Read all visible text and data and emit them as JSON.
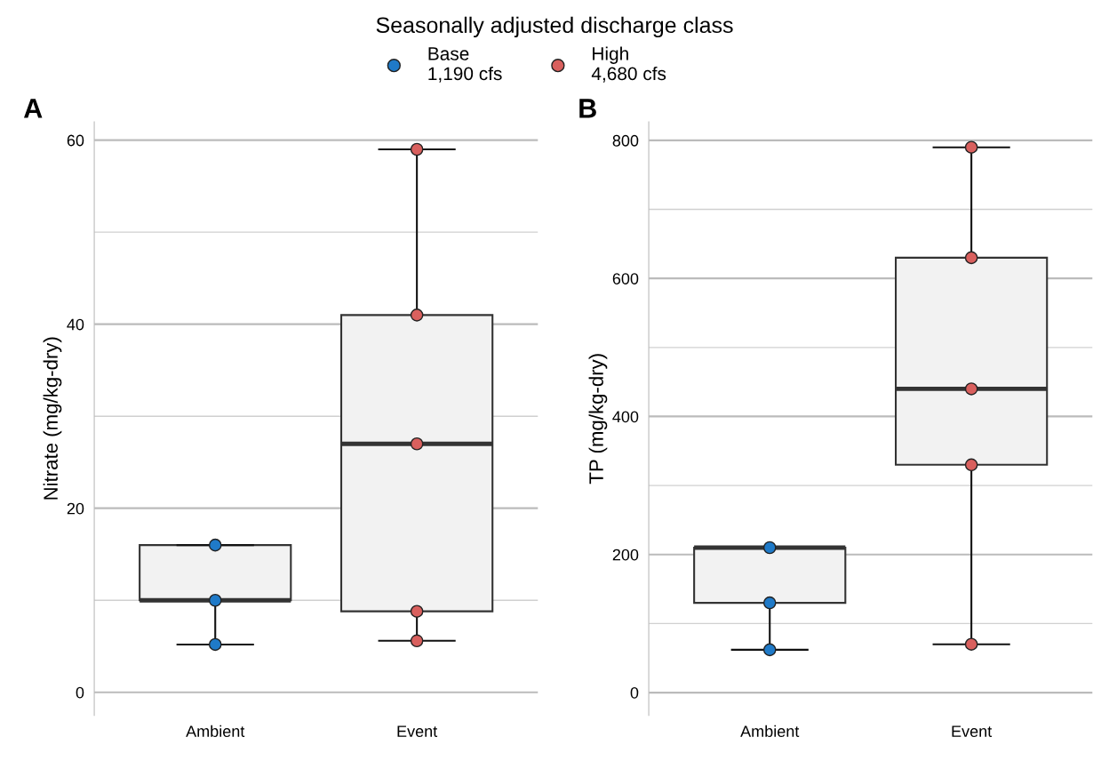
{
  "chart_data": [
    {
      "type": "box",
      "annotations": [
        "A"
      ],
      "ylabel": "Nitrate (mg/kg-dry)",
      "legend_title": "Seasonally adjusted discharge class",
      "legend": "top",
      "grid": "y",
      "marker": "circle",
      "categories": [
        "Ambient",
        "Event"
      ],
      "boxes": [
        {
          "low": 5.2,
          "q1": 10,
          "median": 10,
          "q3": 16,
          "high": 16
        },
        {
          "low": 5.6,
          "q1": 8.8,
          "median": 27,
          "q3": 41,
          "high": 59
        }
      ],
      "ylim": [
        -2.5,
        62
      ],
      "yticks": [
        0,
        {
          "value": 10,
          "label": null
        },
        20,
        {
          "value": 30,
          "label": null
        },
        40,
        {
          "value": 50,
          "label": null
        },
        60
      ],
      "series": [
        {
          "name": "Base\n1,190 cfs",
          "type": "scatter",
          "color": "#1f7ac8",
          "x": [
            "Ambient",
            "Ambient",
            "Ambient"
          ],
          "values": [
            16,
            10,
            5.2
          ]
        },
        {
          "name": "High\n4,680 cfs",
          "type": "scatter",
          "color": "#d9605e",
          "x": [
            "Event",
            "Event",
            "Event",
            "Event",
            "Event"
          ],
          "values": [
            59,
            41,
            27,
            8.8,
            5.6
          ]
        }
      ]
    },
    {
      "type": "box",
      "annotations": [
        "B"
      ],
      "ylabel": "TP (mg/kg-dry)",
      "grid": "y",
      "marker": "circle",
      "categories": [
        "Ambient",
        "Event"
      ],
      "boxes": [
        {
          "low": 62,
          "q1": 130,
          "median": 210,
          "q3": 210,
          "high": 210
        },
        {
          "low": 70,
          "q1": 330,
          "median": 440,
          "q3": 630,
          "high": 790
        }
      ],
      "ylim": [
        -33,
        827
      ],
      "yticks": [
        0,
        {
          "value": 100,
          "label": null
        },
        200,
        {
          "value": 300,
          "label": null
        },
        400,
        {
          "value": 500,
          "label": null
        },
        600,
        {
          "value": 700,
          "label": null
        },
        800
      ],
      "series": [
        {
          "type": "scatter",
          "color": "#1f7ac8",
          "x": [
            "Ambient",
            "Ambient",
            "Ambient"
          ],
          "values": [
            210,
            130,
            62
          ]
        },
        {
          "type": "scatter",
          "color": "#d9605e",
          "x": [
            "Event",
            "Event",
            "Event",
            "Event",
            "Event"
          ],
          "values": [
            790,
            630,
            440,
            330,
            70
          ]
        }
      ]
    }
  ]
}
